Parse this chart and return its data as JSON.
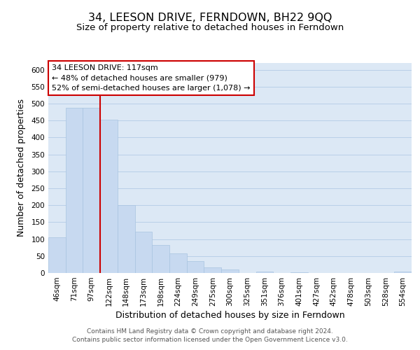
{
  "title": "34, LEESON DRIVE, FERNDOWN, BH22 9QQ",
  "subtitle": "Size of property relative to detached houses in Ferndown",
  "xlabel": "Distribution of detached houses by size in Ferndown",
  "ylabel": "Number of detached properties",
  "bar_labels": [
    "46sqm",
    "71sqm",
    "97sqm",
    "122sqm",
    "148sqm",
    "173sqm",
    "198sqm",
    "224sqm",
    "249sqm",
    "275sqm",
    "300sqm",
    "325sqm",
    "351sqm",
    "376sqm",
    "401sqm",
    "427sqm",
    "452sqm",
    "478sqm",
    "503sqm",
    "528sqm",
    "554sqm"
  ],
  "bar_values": [
    105,
    487,
    487,
    452,
    200,
    122,
    83,
    57,
    35,
    16,
    10,
    0,
    5,
    0,
    3,
    0,
    0,
    0,
    0,
    0,
    5
  ],
  "bar_color": "#c7d9f0",
  "bar_edge_color": "#a8c4e0",
  "ylim": [
    0,
    620
  ],
  "yticks": [
    0,
    50,
    100,
    150,
    200,
    250,
    300,
    350,
    400,
    450,
    500,
    550,
    600
  ],
  "vline_color": "#cc0000",
  "vline_position": 2.5,
  "annotation_line1": "34 LEESON DRIVE: 117sqm",
  "annotation_line2": "← 48% of detached houses are smaller (979)",
  "annotation_line3": "52% of semi-detached houses are larger (1,078) →",
  "annotation_box_facecolor": "#ffffff",
  "annotation_box_edgecolor": "#cc0000",
  "footer_line1": "Contains HM Land Registry data © Crown copyright and database right 2024.",
  "footer_line2": "Contains public sector information licensed under the Open Government Licence v3.0.",
  "background_color": "#ffffff",
  "plot_bg_color": "#dce8f5",
  "grid_color": "#b8cfe8",
  "title_fontsize": 11.5,
  "subtitle_fontsize": 9.5,
  "xlabel_fontsize": 9,
  "ylabel_fontsize": 9,
  "tick_fontsize": 7.5,
  "annotation_fontsize": 8,
  "footer_fontsize": 6.5
}
